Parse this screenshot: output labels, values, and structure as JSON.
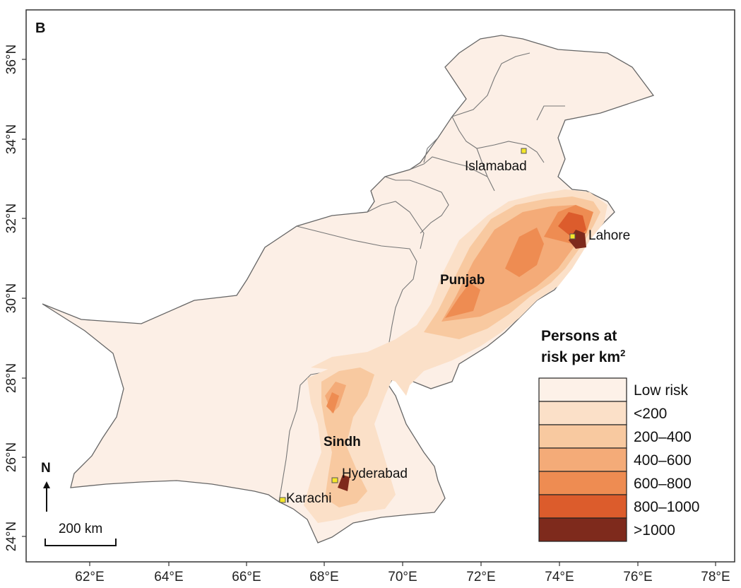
{
  "panel_label": "B",
  "map": {
    "x_ticks": [
      "62°E",
      "64°E",
      "66°E",
      "68°E",
      "70°E",
      "72°E",
      "74°E",
      "76°E",
      "78°E"
    ],
    "y_ticks": [
      "24°N",
      "26°N",
      "28°N",
      "30°N",
      "32°N",
      "34°N",
      "36°N"
    ],
    "base_fill": "#fcefe6",
    "border_color": "#666666"
  },
  "cities": [
    {
      "name": "Islamabad"
    },
    {
      "name": "Lahore"
    },
    {
      "name": "Hyderabad"
    },
    {
      "name": "Karachi"
    }
  ],
  "provinces": [
    {
      "name": "Punjab"
    },
    {
      "name": "Sindh"
    }
  ],
  "north_arrow": {
    "label": "N"
  },
  "scale_bar": {
    "label": "200 km"
  },
  "legend": {
    "title_line1": "Persons at",
    "title_line2": "risk per km",
    "title_sup": "2",
    "classes": [
      {
        "label": "Low risk",
        "color": "#fdf1e8"
      },
      {
        "label": "<200",
        "color": "#fbe0c8"
      },
      {
        "label": "200–400",
        "color": "#f8c9a0"
      },
      {
        "label": "400–600",
        "color": "#f4ab78"
      },
      {
        "label": "600–800",
        "color": "#ee8c52"
      },
      {
        "label": "800–1000",
        "color": "#dc5c2c"
      },
      {
        "label": ">1000",
        "color": "#7e2a1c"
      }
    ]
  }
}
